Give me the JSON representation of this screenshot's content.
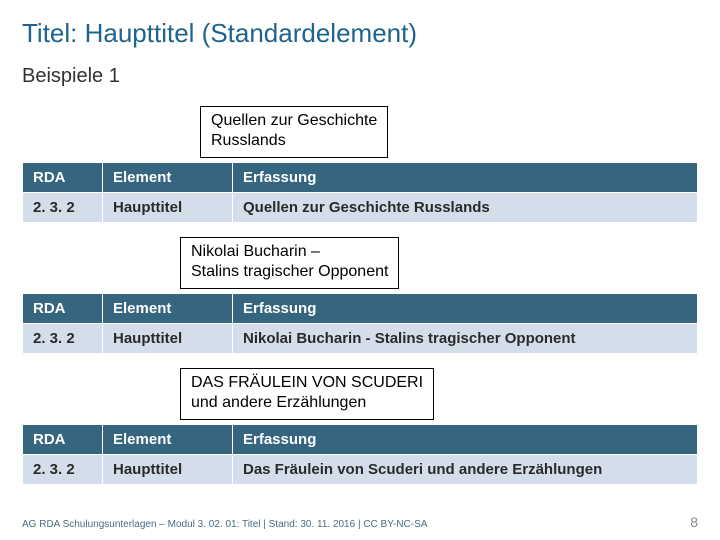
{
  "colors": {
    "title": "#1f6390",
    "subtitle": "#333333",
    "header_bg": "#35657f",
    "row_bg": "#d4deea",
    "row_text": "#2a2a2a",
    "footer_text": "#4a6a85",
    "page_num": "#8a8a8a",
    "box_border": "#000000"
  },
  "title": "Titel: Haupttitel (Standardelement)",
  "subtitle": "Beispiele 1",
  "examples": [
    {
      "box_lines": [
        "Quellen zur Geschichte",
        "Russlands"
      ],
      "table": {
        "headers": [
          "RDA",
          "Element",
          "Erfassung"
        ],
        "row": [
          "2. 3. 2",
          "Haupttitel",
          "Quellen zur Geschichte Russlands"
        ]
      }
    },
    {
      "box_lines": [
        "Nikolai Bucharin –",
        "Stalins tragischer Opponent"
      ],
      "table": {
        "headers": [
          "RDA",
          "Element",
          "Erfassung"
        ],
        "row": [
          "2. 3. 2",
          "Haupttitel",
          "Nikolai Bucharin - Stalins tragischer Opponent"
        ]
      }
    },
    {
      "box_lines": [
        "DAS FRÄULEIN VON SCUDERI",
        "und andere Erzählungen"
      ],
      "table": {
        "headers": [
          "RDA",
          "Element",
          "Erfassung"
        ],
        "row": [
          "2. 3. 2",
          "Haupttitel",
          "Das Fräulein von Scuderi und andere Erzählungen"
        ]
      }
    }
  ],
  "footer": {
    "text": "AG RDA Schulungsunterlagen – Modul 3. 02. 01: Titel | Stand: 30. 11. 2016 | CC BY-NC-SA",
    "page": "8"
  }
}
